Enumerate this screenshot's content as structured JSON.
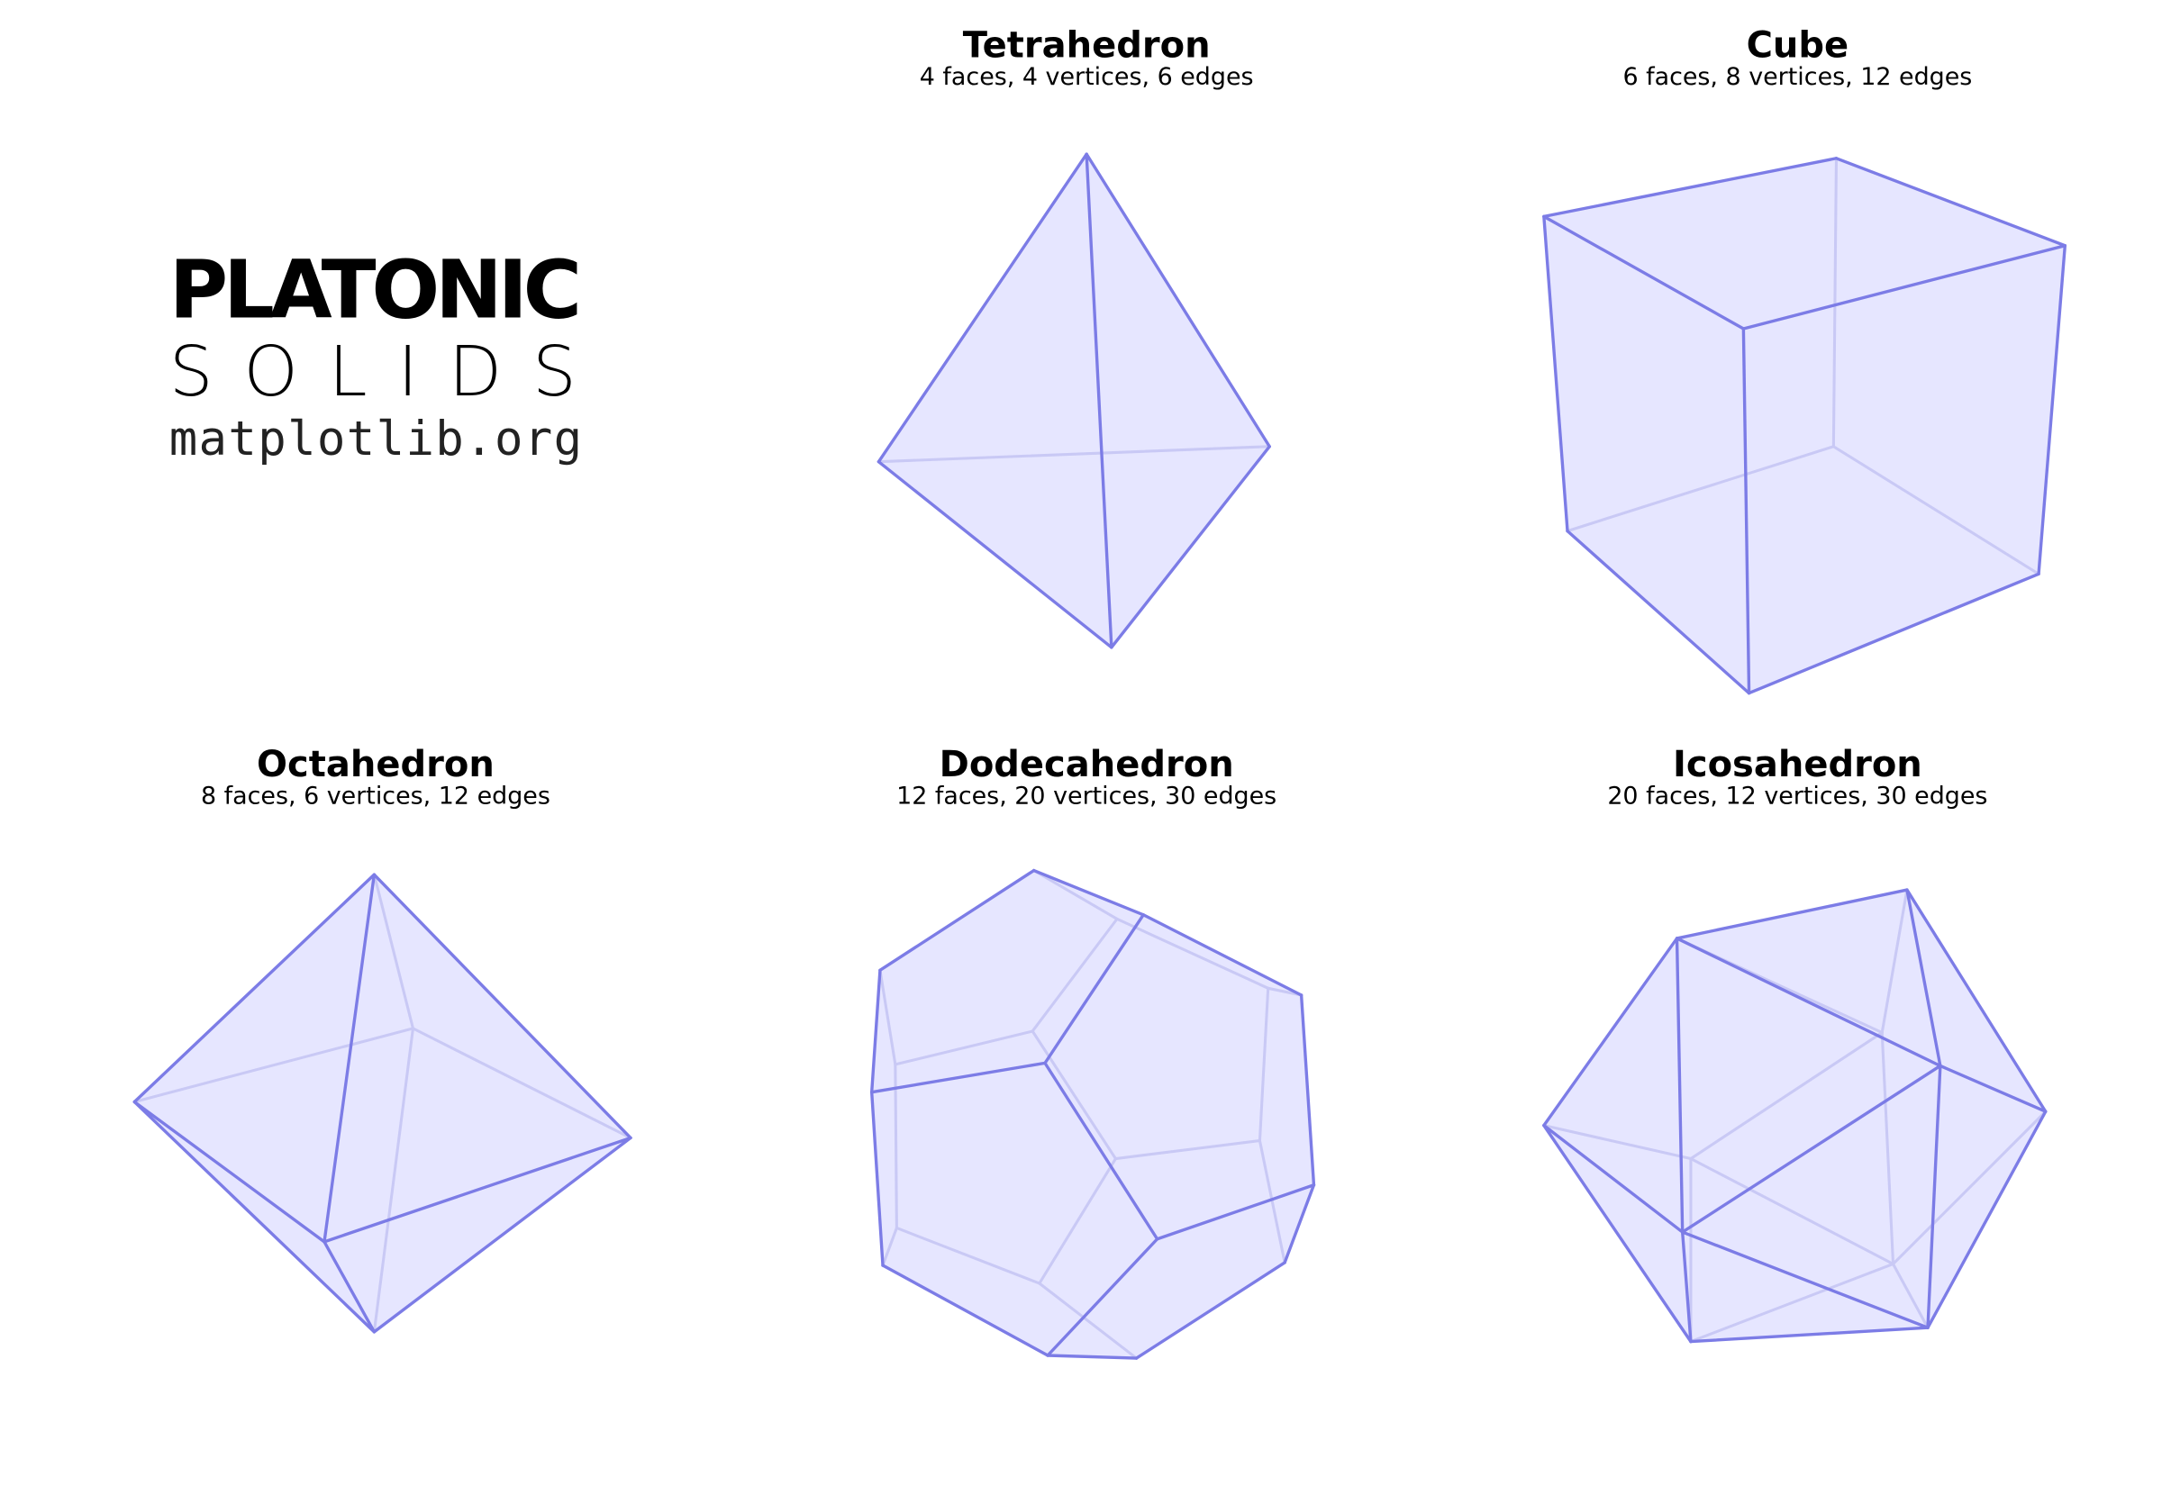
{
  "logo": {
    "line1": "PLATONIC",
    "line2": "SOLIDS",
    "line3": "matplotlib.org"
  },
  "colors": {
    "edge": "#7c7ce6",
    "face": "#e6e6ff",
    "hidden_edge": "#c9c9f5"
  },
  "solids": [
    {
      "name": "Tetrahedron",
      "subtitle": "4 faces, 4 vertices, 6 edges"
    },
    {
      "name": "Cube",
      "subtitle": "6 faces, 8 vertices, 12 edges"
    },
    {
      "name": "Octahedron",
      "subtitle": "8 faces, 6 vertices, 12 edges"
    },
    {
      "name": "Dodecahedron",
      "subtitle": "12 faces, 20 vertices, 30 edges"
    },
    {
      "name": "Icosahedron",
      "subtitle": "20 faces, 12 vertices, 30 edges"
    }
  ]
}
